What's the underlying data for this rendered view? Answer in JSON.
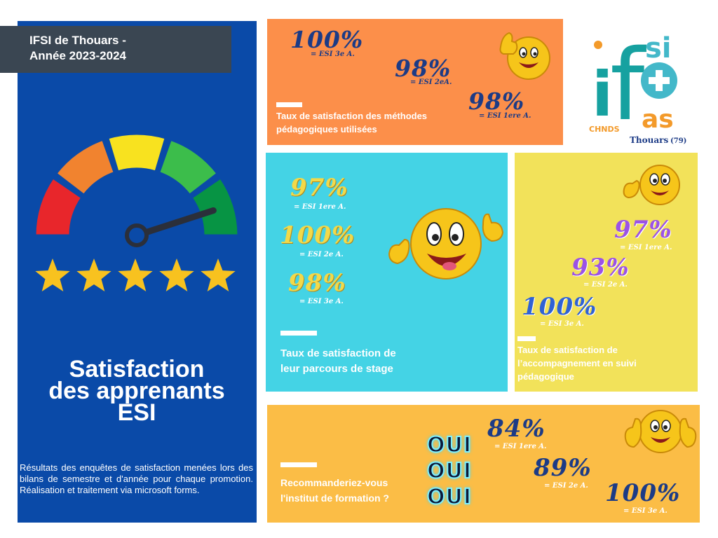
{
  "header": {
    "line1": "IFSI de Thouars -",
    "line2": "Année 2023-2024"
  },
  "main_title": {
    "line1": "Satisfaction",
    "line2": "des apprenants",
    "line3": "ESI"
  },
  "footnote": "Résultats des enquêtes de satisfaction menées lors des bilans de semestre et d'année pour chaque promotion. Réalisation et traitement  via microsoft forms.",
  "gauge": {
    "segment_colors": [
      "#e8262b",
      "#f1832f",
      "#f8e21f",
      "#3cbd4b",
      "#079444"
    ],
    "needle_level": 0.9
  },
  "stars": {
    "count": 5,
    "color": "#f8c21f"
  },
  "logo": {
    "letters_top": "si",
    "letter_f": "f",
    "letter_i": "i",
    "letters_bottom": "as",
    "chnds": "CHNDS",
    "city": "Thouars",
    "dept": "(79)"
  },
  "cards": {
    "methods": {
      "caption": "Taux de satisfaction des méthodes pédagogiques utilisées",
      "stats": [
        {
          "value": "100%",
          "label": "= ESI 3e A."
        },
        {
          "value": "98%",
          "label": "= ESI 2eA."
        },
        {
          "value": "98%",
          "label": "= ESI 1ere A."
        }
      ]
    },
    "stage": {
      "caption_line1": "Taux de satisfaction de",
      "caption_line2": "leur parcours de stage",
      "stats": [
        {
          "value": "97%",
          "label": "= ESI 1ere A."
        },
        {
          "value": "100%",
          "label": "= ESI 2e A."
        },
        {
          "value": "98%",
          "label": "= ESI 3e A."
        }
      ]
    },
    "suivi": {
      "caption": "Taux de satisfaction de l’accompagnement en suivi pédagogique",
      "stats": [
        {
          "value": "97%",
          "label": "= ESI 1ere A."
        },
        {
          "value": "93%",
          "label": "= ESI 2e A."
        },
        {
          "value": "100%",
          "label": "= ESI 3e A."
        }
      ]
    },
    "recommend": {
      "caption_line1": "Recommanderiez-vous",
      "caption_line2": "l'institut de formation ?",
      "oui": [
        "OUI",
        "OUI",
        "OUI"
      ],
      "stats": [
        {
          "value": "84%",
          "label": "= ESI 1ere A."
        },
        {
          "value": "89%",
          "label": "= ESI 2e A."
        },
        {
          "value": "100%",
          "label": "= ESI 3e A."
        }
      ]
    }
  }
}
